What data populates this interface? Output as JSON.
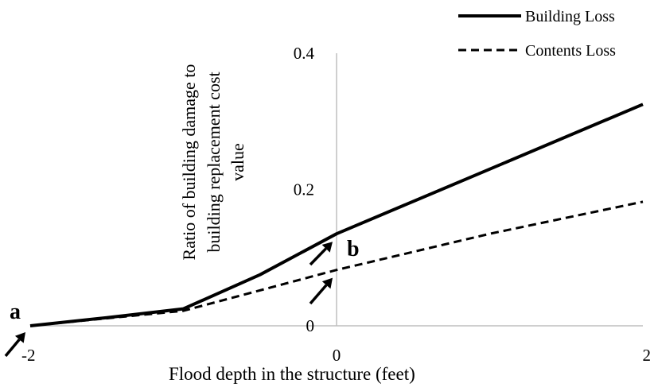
{
  "chart_data": {
    "type": "line",
    "xlabel": "Flood depth in the structure (feet)",
    "ylabel_lines": [
      "Ratio of building damage to",
      "building replacement cost",
      "value"
    ],
    "xlim": [
      -2,
      2
    ],
    "ylim": [
      0,
      0.4
    ],
    "x_ticks": [
      {
        "value": -2,
        "label": "-2"
      },
      {
        "value": 0,
        "label": "0"
      },
      {
        "value": 2,
        "label": "2"
      }
    ],
    "y_ticks": [
      {
        "value": 0,
        "label": "0"
      },
      {
        "value": 0.2,
        "label": "0.2"
      },
      {
        "value": 0.4,
        "label": "0.4"
      }
    ],
    "grid": false,
    "legend_position": "top-right",
    "series": [
      {
        "name": "Building Loss",
        "style": "solid",
        "points": [
          {
            "x": -2,
            "y": 0
          },
          {
            "x": -1.5,
            "y": 0.012
          },
          {
            "x": -1.0,
            "y": 0.025
          },
          {
            "x": -0.5,
            "y": 0.075
          },
          {
            "x": 0,
            "y": 0.135
          },
          {
            "x": 1,
            "y": 0.23
          },
          {
            "x": 2,
            "y": 0.325
          }
        ]
      },
      {
        "name": "Contents Loss",
        "style": "dashed",
        "points": [
          {
            "x": -2,
            "y": 0
          },
          {
            "x": -1.0,
            "y": 0.022
          },
          {
            "x": 0,
            "y": 0.082
          },
          {
            "x": 1,
            "y": 0.135
          },
          {
            "x": 2,
            "y": 0.182
          }
        ]
      }
    ],
    "annotations": [
      {
        "label": "a",
        "x": -2,
        "y": 0
      },
      {
        "label": "b",
        "x": 0,
        "y": 0.135
      }
    ]
  },
  "colors": {
    "line": "#000000",
    "axis": "#bfbfbf",
    "background": "#ffffff"
  }
}
